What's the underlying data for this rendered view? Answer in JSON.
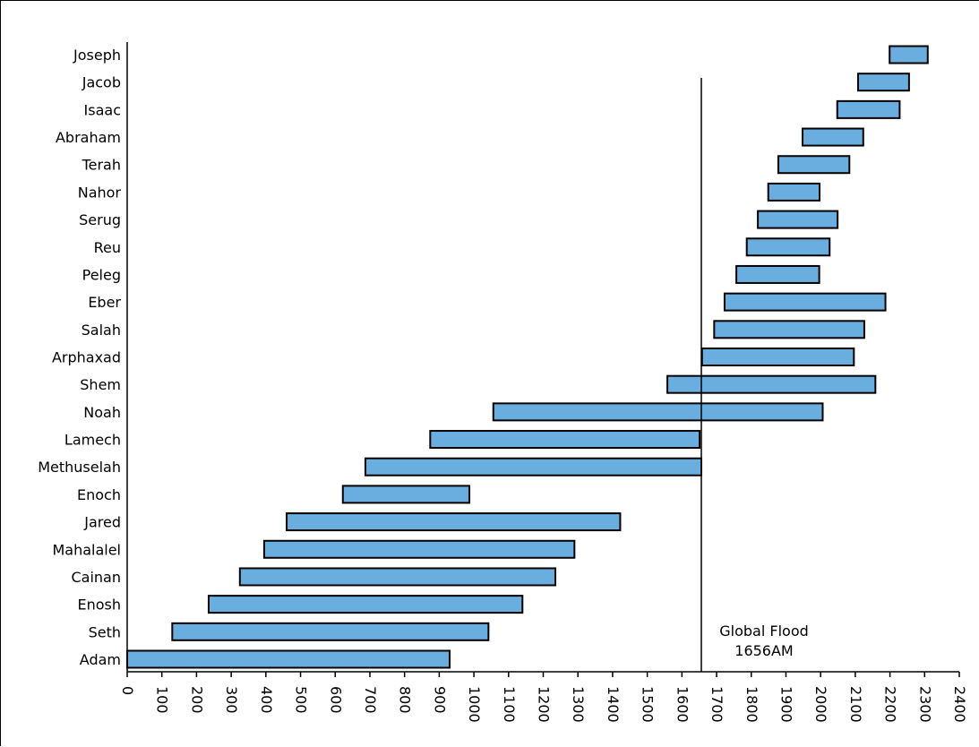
{
  "chart_data": {
    "type": "bar",
    "orientation": "horizontal-range",
    "categories": [
      "Adam",
      "Seth",
      "Enosh",
      "Cainan",
      "Mahalalel",
      "Jared",
      "Enoch",
      "Methuselah",
      "Lamech",
      "Noah",
      "Shem",
      "Arphaxad",
      "Salah",
      "Eber",
      "Peleg",
      "Reu",
      "Serug",
      "Nahor",
      "Terah",
      "Abraham",
      "Isaac",
      "Jacob",
      "Joseph"
    ],
    "series": [
      {
        "start": [
          0,
          130,
          235,
          325,
          395,
          460,
          622,
          687,
          874,
          1056,
          1558,
          1658,
          1693,
          1723,
          1757,
          1787,
          1819,
          1849,
          1878,
          1948,
          2048,
          2108,
          2199
        ],
        "end": [
          930,
          1042,
          1140,
          1235,
          1290,
          1422,
          987,
          1656,
          1651,
          2006,
          2158,
          2096,
          2126,
          2187,
          1996,
          2026,
          2049,
          1997,
          2083,
          2123,
          2228,
          2255,
          2309
        ]
      }
    ],
    "xlim": [
      0,
      2400
    ],
    "xticks": [
      "0",
      "100",
      "200",
      "300",
      "400",
      "500",
      "600",
      "700",
      "800",
      "900",
      "1000",
      "1100",
      "1200",
      "1300",
      "1400",
      "1500",
      "1600",
      "1700",
      "1800",
      "1900",
      "2000",
      "2100",
      "2200",
      "2300",
      "2400"
    ],
    "grid": false,
    "bar_color": "#6aaee0",
    "annotation": {
      "x": 1656,
      "line1": "Global Flood",
      "line2": "1656AM"
    }
  }
}
